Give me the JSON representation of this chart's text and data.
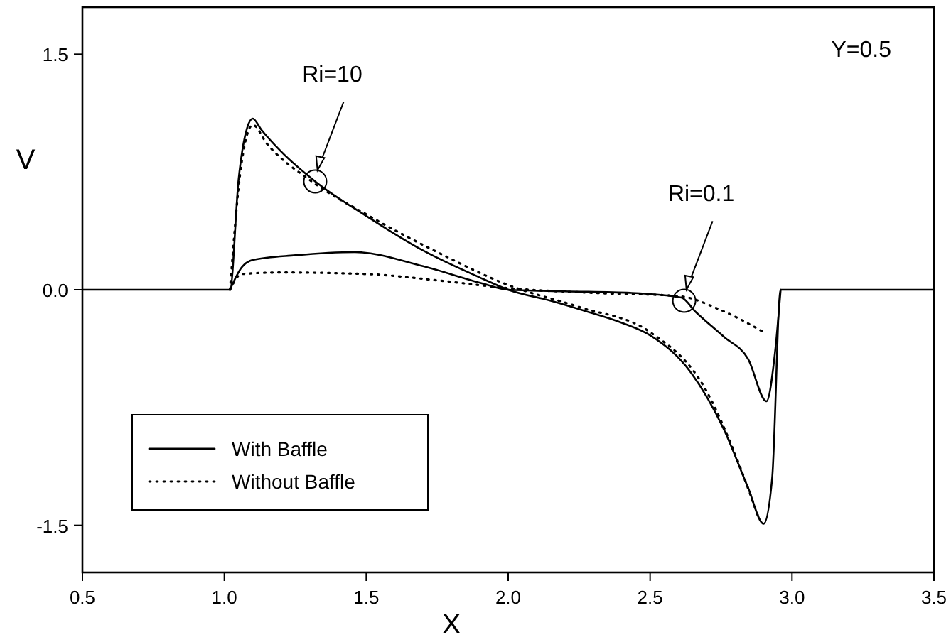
{
  "chart_data": {
    "type": "line",
    "xlabel": "X",
    "ylabel": "V",
    "xlim": [
      0.5,
      3.5
    ],
    "ylim": [
      -1.8,
      1.8
    ],
    "xticks": [
      0.5,
      {
        "value": 1,
        "label": "1.0"
      },
      1.5,
      {
        "value": 2,
        "label": "2.0"
      },
      2.5,
      {
        "value": 3,
        "label": "3.0"
      },
      3.5
    ],
    "yticks": [
      -1.5,
      {
        "value": 0,
        "label": "0.0"
      },
      1.5
    ],
    "grid": false,
    "legend": "bottom left",
    "marker": "none",
    "series": [
      {
        "name": "With Baffle",
        "color": "#000000",
        "line_style": "solid",
        "x": [
          0.5,
          1.02,
          1.05,
          1.08,
          1.1,
          1.13,
          1.2,
          1.32,
          1.5,
          1.7,
          1.91,
          2.0,
          2.15,
          2.28,
          2.4,
          2.5,
          2.645,
          2.76,
          2.845,
          2.9,
          2.93,
          2.96,
          3.5
        ],
        "values": [
          0,
          0,
          0.7,
          1.03,
          1.09,
          1.02,
          0.88,
          0.69,
          0.47,
          0.25,
          0.07,
          0.0,
          -0.07,
          -0.14,
          -0.21,
          -0.29,
          -0.53,
          -0.89,
          -1.26,
          -1.49,
          -1.2,
          0,
          0
        ]
      },
      {
        "name": "Without Baffle",
        "color": "#000000",
        "line_style": "dotted",
        "x": [
          1.02,
          1.06,
          1.1,
          1.15,
          1.3,
          1.5,
          1.75,
          2.0,
          2.25,
          2.5,
          2.7,
          2.8,
          2.88
        ],
        "values": [
          0,
          0.8,
          1.05,
          0.93,
          0.7,
          0.48,
          0.24,
          0.03,
          -0.11,
          -0.27,
          -0.65,
          -1.05,
          -1.44
        ]
      },
      {
        "color": "#000000",
        "line_style": "solid",
        "x": [
          1.02,
          1.06,
          1.1,
          1.25,
          1.46,
          1.7,
          1.91,
          2.0,
          2.2,
          2.43,
          2.61,
          2.66,
          2.76,
          2.845,
          2.91,
          2.94,
          2.96
        ],
        "values": [
          0,
          0.14,
          0.19,
          0.22,
          0.24,
          0.15,
          0.04,
          0.0,
          -0.01,
          -0.02,
          -0.05,
          -0.14,
          -0.3,
          -0.44,
          -0.71,
          -0.4,
          0
        ]
      },
      {
        "color": "#000000",
        "line_style": "dotted",
        "x": [
          1.02,
          1.06,
          1.2,
          1.5,
          1.75,
          2.0,
          2.3,
          2.6,
          2.75,
          2.91
        ],
        "values": [
          0,
          0.1,
          0.11,
          0.1,
          0.06,
          0.01,
          -0.02,
          -0.04,
          -0.13,
          -0.28
        ]
      }
    ],
    "annotations": [
      {
        "text": "Ri=10",
        "x": 1.32,
        "y": 0.69
      },
      {
        "text": "Ri=0.1",
        "x": 2.62,
        "y": -0.07
      },
      "Y=0.5"
    ]
  }
}
